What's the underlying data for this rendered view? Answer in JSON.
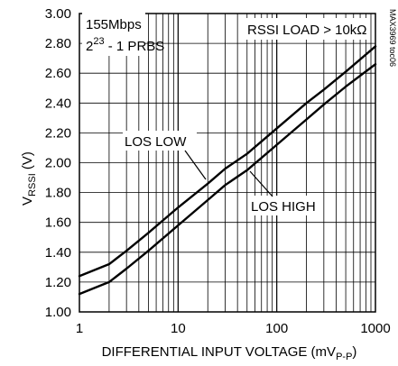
{
  "chart_data": {
    "type": "line",
    "xscale": "log",
    "xlim": [
      1,
      1000
    ],
    "ylim": [
      1.0,
      3.0
    ],
    "grid": true,
    "x_ticks": [
      {
        "value": 1,
        "label": "1"
      },
      {
        "value": 10,
        "label": "10"
      },
      {
        "value": 100,
        "label": "100"
      },
      {
        "value": 1000,
        "label": "1000"
      }
    ],
    "y_ticks": [
      {
        "value": 1.0,
        "label": "1.00"
      },
      {
        "value": 1.2,
        "label": "1.20"
      },
      {
        "value": 1.4,
        "label": "1.40"
      },
      {
        "value": 1.6,
        "label": "1.60"
      },
      {
        "value": 1.8,
        "label": "1.80"
      },
      {
        "value": 2.0,
        "label": "2.00"
      },
      {
        "value": 2.2,
        "label": "2.20"
      },
      {
        "value": 2.4,
        "label": "2.40"
      },
      {
        "value": 2.6,
        "label": "2.60"
      },
      {
        "value": 2.8,
        "label": "2.80"
      },
      {
        "value": 3.0,
        "label": "3.00"
      }
    ],
    "xlabel": {
      "main": "DIFFERENTIAL INPUT VOLTAGE (mV",
      "sub": "P-P",
      "tail": ")"
    },
    "ylabel": {
      "main": "V",
      "sub": "RSSI",
      "tail": " (V)"
    },
    "annotations": {
      "rate": "155Mbps",
      "prbs_base": "2",
      "prbs_exp": "23",
      "prbs_tail": " - 1 PRBS",
      "load": "RSSI LOAD > 10kΩ",
      "watermark": "MAX3969 toc06"
    },
    "series": [
      {
        "name": "LOS LOW",
        "x": [
          1,
          2,
          3,
          5,
          10,
          20,
          30,
          50,
          100,
          200,
          300,
          500,
          1000
        ],
        "y": [
          1.24,
          1.32,
          1.41,
          1.53,
          1.7,
          1.86,
          1.96,
          2.06,
          2.23,
          2.4,
          2.49,
          2.61,
          2.78
        ]
      },
      {
        "name": "LOS HIGH",
        "x": [
          1,
          2,
          3,
          5,
          10,
          20,
          30,
          50,
          100,
          200,
          300,
          500,
          1000
        ],
        "y": [
          1.12,
          1.2,
          1.29,
          1.41,
          1.58,
          1.75,
          1.85,
          1.95,
          2.12,
          2.29,
          2.39,
          2.51,
          2.66
        ]
      }
    ]
  }
}
